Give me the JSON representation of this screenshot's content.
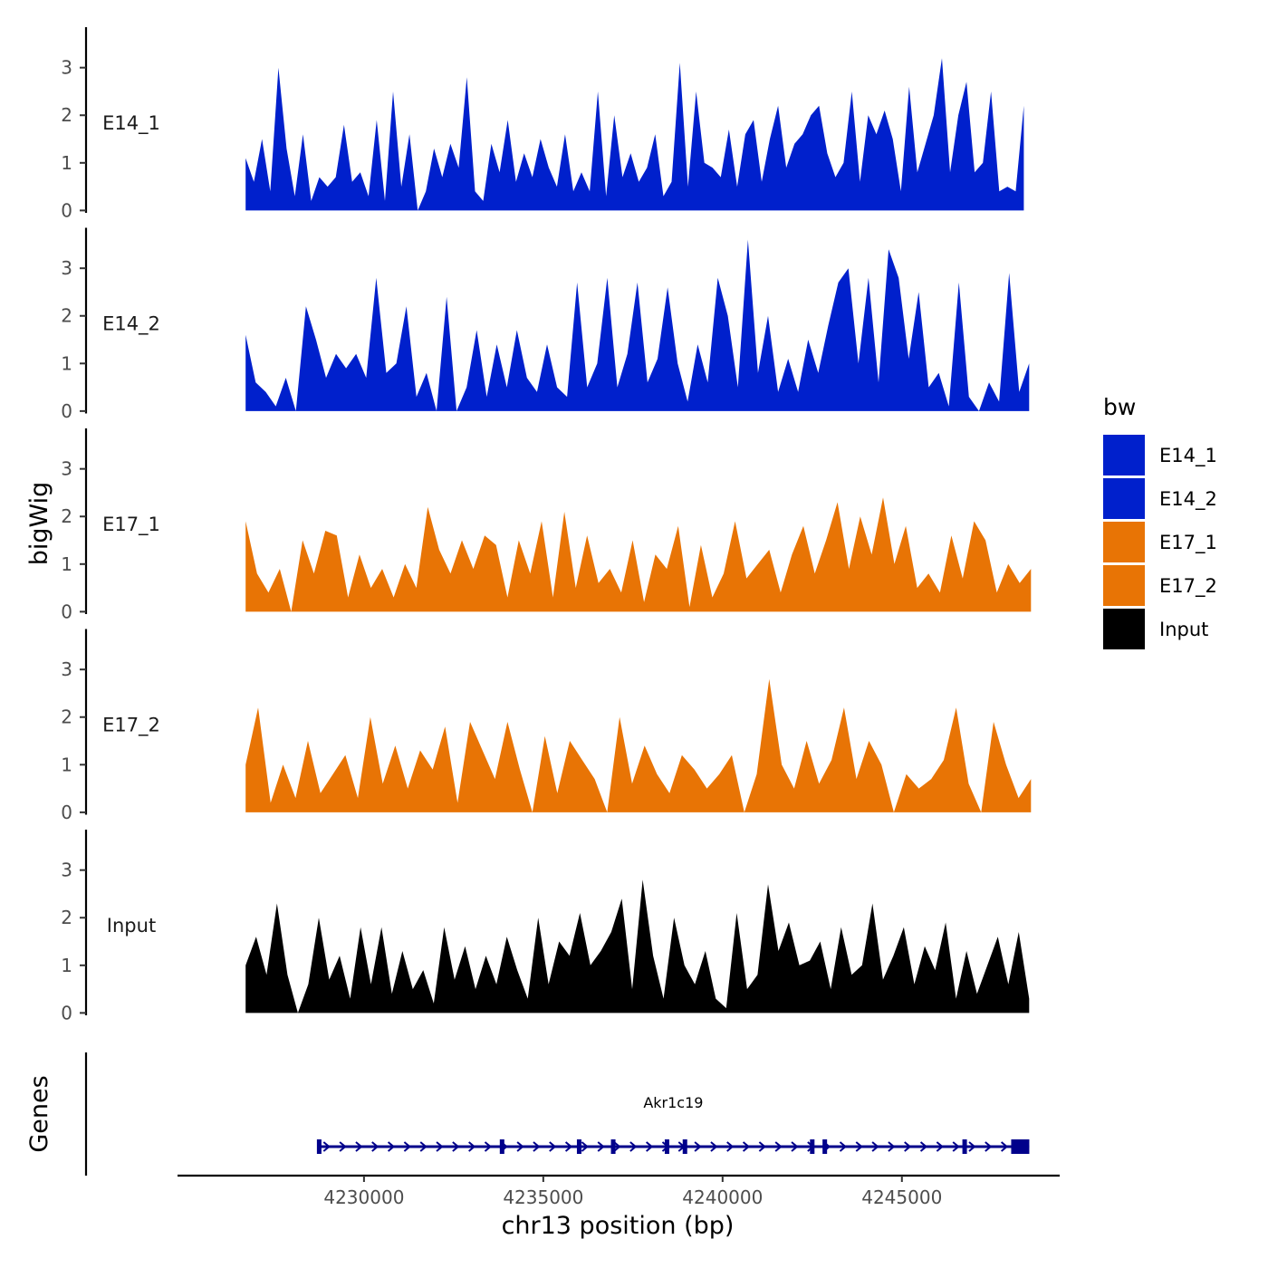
{
  "chart_data": {
    "type": "area",
    "title": "",
    "ylabel": "bigWig",
    "genes_label": "Genes",
    "xlabel": "chr13 position (bp)",
    "x_range": [
      4226700,
      4248700
    ],
    "xlim": [
      4224800,
      4249400
    ],
    "x_ticks": [
      4230000,
      4235000,
      4240000,
      4245000
    ],
    "x_tick_labels": [
      "4230000",
      "4235000",
      "4240000",
      "4245000"
    ],
    "y_ticks": [
      0,
      1,
      2,
      3
    ],
    "y_tick_labels": [
      "0",
      "1",
      "2",
      "3"
    ],
    "ylim": [
      -0.05,
      3.85
    ],
    "legend": {
      "title": "bw",
      "placement": "right",
      "entries": [
        {
          "label": "E14_1",
          "color": "#0020CC"
        },
        {
          "label": "E14_2",
          "color": "#0020CC"
        },
        {
          "label": "E17_1",
          "color": "#E87405"
        },
        {
          "label": "E17_2",
          "color": "#E87405"
        },
        {
          "label": "Input",
          "color": "#000000"
        }
      ]
    },
    "series": [
      {
        "name": "E14_1",
        "color": "#0020CC",
        "x_start": 4226700,
        "x_end": 4248400,
        "values": [
          1.1,
          0.6,
          1.5,
          0.4,
          3.0,
          1.3,
          0.3,
          1.6,
          0.2,
          0.7,
          0.5,
          0.7,
          1.8,
          0.6,
          0.8,
          0.3,
          1.9,
          0.2,
          2.5,
          0.5,
          1.6,
          0.0,
          0.4,
          1.3,
          0.7,
          1.4,
          0.9,
          2.8,
          0.4,
          0.2,
          1.4,
          0.8,
          1.9,
          0.6,
          1.2,
          0.7,
          1.5,
          0.9,
          0.5,
          1.6,
          0.4,
          0.8,
          0.4,
          2.5,
          0.3,
          2.0,
          0.7,
          1.2,
          0.6,
          0.9,
          1.6,
          0.3,
          0.6,
          3.1,
          0.5,
          2.5,
          1.0,
          0.9,
          0.7,
          1.7,
          0.5,
          1.6,
          1.9,
          0.6,
          1.5,
          2.2,
          0.9,
          1.4,
          1.6,
          2.0,
          2.2,
          1.2,
          0.7,
          1.0,
          2.5,
          0.6,
          2.0,
          1.6,
          2.1,
          1.5,
          0.4,
          2.6,
          0.8,
          1.4,
          2.0,
          3.2,
          0.8,
          2.0,
          2.7,
          0.8,
          1.0,
          2.5,
          0.4,
          0.5,
          0.4,
          2.2
        ]
      },
      {
        "name": "E14_2",
        "color": "#0020CC",
        "x_start": 4226700,
        "x_end": 4248550,
        "values": [
          1.6,
          0.6,
          0.4,
          0.1,
          0.7,
          0.0,
          2.2,
          1.5,
          0.7,
          1.2,
          0.9,
          1.2,
          0.7,
          2.8,
          0.8,
          1.0,
          2.2,
          0.3,
          0.8,
          0.0,
          2.4,
          0.0,
          0.5,
          1.7,
          0.3,
          1.4,
          0.5,
          1.7,
          0.7,
          0.4,
          1.4,
          0.5,
          0.3,
          2.7,
          0.5,
          1.0,
          2.8,
          0.5,
          1.2,
          2.7,
          0.6,
          1.1,
          2.6,
          1.0,
          0.2,
          1.4,
          0.6,
          2.8,
          2.0,
          0.5,
          3.6,
          0.8,
          2.0,
          0.4,
          1.1,
          0.4,
          1.5,
          0.8,
          1.8,
          2.7,
          3.0,
          1.0,
          2.8,
          0.6,
          3.4,
          2.8,
          1.1,
          2.5,
          0.5,
          0.8,
          0.1,
          2.7,
          0.3,
          0.0,
          0.6,
          0.2,
          2.9,
          0.4,
          1.0
        ]
      },
      {
        "name": "E17_1",
        "color": "#E87405",
        "x_start": 4226700,
        "x_end": 4248600,
        "values": [
          1.9,
          0.8,
          0.4,
          0.9,
          0.0,
          1.5,
          0.8,
          1.7,
          1.6,
          0.3,
          1.2,
          0.5,
          0.9,
          0.3,
          1.0,
          0.5,
          2.2,
          1.3,
          0.8,
          1.5,
          0.9,
          1.6,
          1.4,
          0.3,
          1.5,
          0.8,
          1.9,
          0.3,
          2.1,
          0.5,
          1.6,
          0.6,
          0.9,
          0.4,
          1.5,
          0.2,
          1.2,
          0.9,
          1.8,
          0.1,
          1.4,
          0.3,
          0.8,
          1.9,
          0.7,
          1.0,
          1.3,
          0.4,
          1.2,
          1.8,
          0.8,
          1.5,
          2.3,
          0.9,
          2.0,
          1.2,
          2.4,
          1.0,
          1.8,
          0.5,
          0.8,
          0.4,
          1.6,
          0.7,
          1.9,
          1.5,
          0.4,
          1.0,
          0.6,
          0.9
        ]
      },
      {
        "name": "E17_2",
        "color": "#E87405",
        "x_start": 4226700,
        "x_end": 4248600,
        "values": [
          1.0,
          2.2,
          0.2,
          1.0,
          0.3,
          1.5,
          0.4,
          0.8,
          1.2,
          0.3,
          2.0,
          0.6,
          1.4,
          0.5,
          1.3,
          0.9,
          1.8,
          0.2,
          1.9,
          1.3,
          0.7,
          1.9,
          0.9,
          0.0,
          1.6,
          0.4,
          1.5,
          1.1,
          0.7,
          0.0,
          2.0,
          0.6,
          1.4,
          0.8,
          0.4,
          1.2,
          0.9,
          0.5,
          0.8,
          1.2,
          0.0,
          0.8,
          2.8,
          1.0,
          0.5,
          1.5,
          0.6,
          1.1,
          2.2,
          0.7,
          1.5,
          1.0,
          0.0,
          0.8,
          0.5,
          0.7,
          1.1,
          2.2,
          0.6,
          0.0,
          1.9,
          1.0,
          0.3,
          0.7
        ]
      },
      {
        "name": "Input",
        "color": "#000000",
        "x_start": 4226700,
        "x_end": 4248550,
        "values": [
          1.0,
          1.6,
          0.8,
          2.3,
          0.8,
          0.0,
          0.6,
          2.0,
          0.7,
          1.2,
          0.3,
          1.8,
          0.6,
          1.8,
          0.4,
          1.3,
          0.5,
          0.9,
          0.2,
          1.8,
          0.7,
          1.4,
          0.5,
          1.2,
          0.6,
          1.6,
          0.9,
          0.3,
          2.0,
          0.6,
          1.5,
          1.2,
          2.1,
          1.0,
          1.3,
          1.7,
          2.4,
          0.5,
          2.8,
          1.2,
          0.3,
          2.0,
          1.0,
          0.6,
          1.3,
          0.3,
          0.1,
          2.1,
          0.5,
          0.8,
          2.7,
          1.3,
          1.9,
          1.0,
          1.1,
          1.5,
          0.5,
          1.8,
          0.8,
          1.0,
          2.3,
          0.7,
          1.2,
          1.8,
          0.6,
          1.4,
          0.9,
          1.9,
          0.3,
          1.3,
          0.4,
          1.0,
          1.6,
          0.6,
          1.7,
          0.3
        ]
      }
    ],
    "genes": [
      {
        "name": "Akr1c19",
        "start": 4228700,
        "end": 4248550,
        "strand": "+",
        "exons": [
          4228750,
          4233850,
          4236000,
          4236950,
          4238450,
          4238950,
          4242500,
          4242850,
          4246750,
          4248300
        ]
      }
    ]
  }
}
